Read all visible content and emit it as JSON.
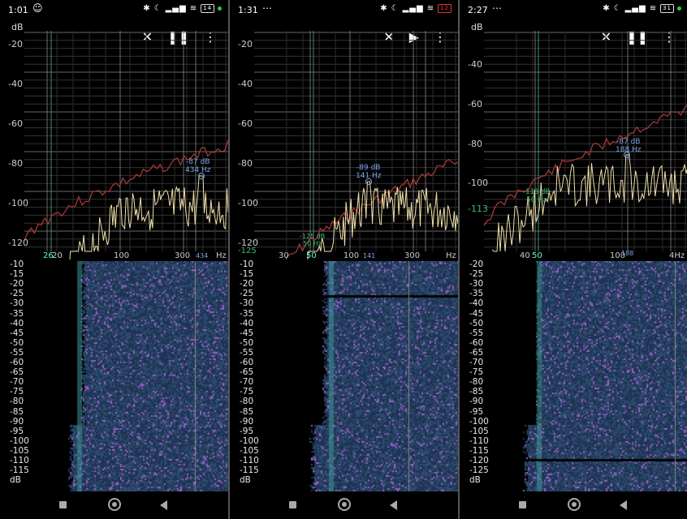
{
  "panels": [
    {
      "status": {
        "time": "1:01",
        "extra": "☺",
        "battery": "14",
        "battery_low": false,
        "dot": true
      },
      "db_unit": "dB",
      "actions": {
        "close": "✕",
        "toggle": "❚❚",
        "menu": "⋮"
      },
      "y_labels": [
        "-20",
        "-40",
        "-60",
        "-80",
        "-100",
        "-120"
      ],
      "x_labels": [
        "20",
        "26",
        "100",
        "300",
        "Hz"
      ],
      "x_marker": "434",
      "peak": {
        "db": "-87 dB",
        "hz": "434 Hz"
      },
      "spectro_labels": [
        "-10",
        "-15",
        "-20",
        "-25",
        "-30",
        "-35",
        "-40",
        "-45",
        "-50",
        "-55",
        "-60",
        "-65",
        "-70",
        "-75",
        "-80",
        "-85",
        "-90",
        "-95",
        "-100",
        "-105",
        "-110",
        "-115",
        "dB"
      ]
    },
    {
      "status": {
        "time": "1:31",
        "extra": "⋯",
        "battery": "12",
        "battery_low": true,
        "dot": false
      },
      "db_unit": "",
      "actions": {
        "close": "✕",
        "toggle": "▶",
        "menu": "⋮"
      },
      "y_labels": [
        "-20",
        "-40",
        "-60",
        "-80",
        "-100",
        "-120",
        "-125"
      ],
      "x_labels": [
        "30",
        "50",
        "100",
        "300",
        "Hz"
      ],
      "x_marker": "141",
      "peak": {
        "db": "-89 dB",
        "hz": "141 Hz"
      },
      "peak2": {
        "db": "-125 dB",
        "hz": "50 Hz"
      },
      "spectro_labels": [
        "-10",
        "-15",
        "-20",
        "-25",
        "-30",
        "-35",
        "-40",
        "-45",
        "-50",
        "-55",
        "-60",
        "-65",
        "-70",
        "-75",
        "-80",
        "-85",
        "-90",
        "-95",
        "-100",
        "-105",
        "-110",
        "-115",
        "dB"
      ]
    },
    {
      "status": {
        "time": "2:27",
        "extra": "⋯",
        "battery": "31",
        "battery_low": false,
        "dot": true
      },
      "db_unit": "dB",
      "actions": {
        "close": "✕",
        "toggle": "❚❚",
        "menu": "⋮"
      },
      "y_labels": [
        "-40",
        "-60",
        "-80",
        "-100",
        "-113"
      ],
      "x_labels": [
        "40",
        "50",
        "100",
        "4Hz"
      ],
      "x_marker": "188",
      "peak": {
        "db": "-87 dB",
        "hz": "188 Hz"
      },
      "peak2": {
        "db": "-113 dB",
        "hz": "50 Hz"
      },
      "spectro_labels": [
        "-20",
        "-25",
        "-30",
        "-35",
        "-40",
        "-45",
        "-50",
        "-55",
        "-60",
        "-65",
        "-70",
        "-75",
        "-80",
        "-85",
        "-90",
        "-95",
        "-100",
        "-105",
        "-110",
        "-115",
        "-120",
        "-125",
        "dB"
      ]
    }
  ],
  "colors": {
    "max_curve": "#b23a3a",
    "live_curve": "#f0e0a8",
    "peak": "#7aa6e8",
    "peak2": "#3dbb6a",
    "spectro_bg": "#2f4a6e",
    "spectro_hot": "#9a5cc8"
  }
}
